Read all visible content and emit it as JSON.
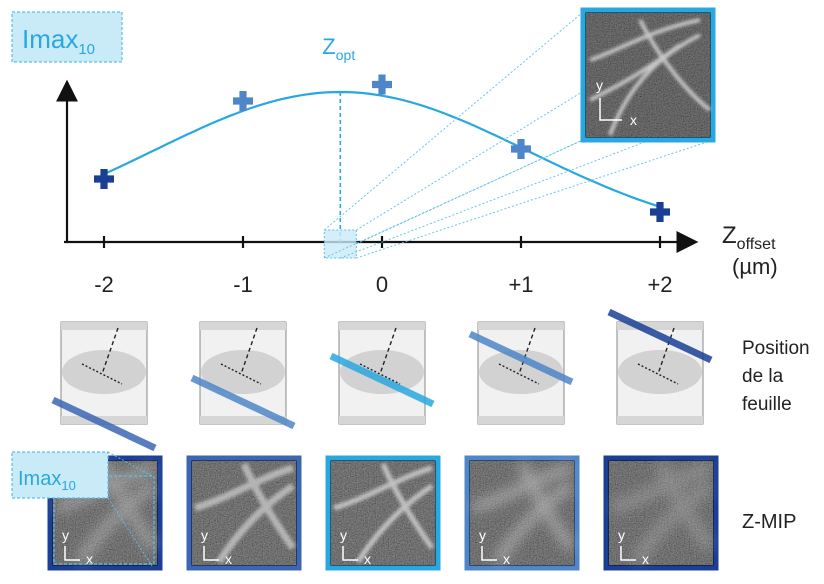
{
  "colors": {
    "curve": "#29a8e0",
    "label_box_fill": "#c9ebf8",
    "label_box_stroke": "#5bbfe9",
    "marker_dark": "#1a3f95",
    "marker_mid": "#3c66b4",
    "marker_light": "#4f86c8",
    "dashed": "#222222"
  },
  "chart_data": {
    "type": "line",
    "ylabel": {
      "base": "Imax",
      "sub": "10"
    },
    "xlabel": {
      "base": "Z",
      "sub": "offset",
      "unit": "(µm)"
    },
    "optimum_label": {
      "base": "Z",
      "sub": "opt"
    },
    "optimum_x": -0.3,
    "xlim": [
      -2.5,
      2.5
    ],
    "ylim": [
      0,
      1.1
    ],
    "x_ticks": [
      -2,
      -1,
      0,
      1,
      2
    ],
    "x_tick_labels": [
      "-2",
      "-1",
      "0",
      "+1",
      "+2"
    ],
    "points": [
      {
        "x": -2,
        "y": 0.42
      },
      {
        "x": -1,
        "y": 0.94
      },
      {
        "x": 0,
        "y": 1.05
      },
      {
        "x": 1,
        "y": 0.62
      },
      {
        "x": 2,
        "y": 0.2
      }
    ],
    "fit_curve": {
      "peak_x": -0.3,
      "peak_y": 1.0,
      "sigma": 1.35
    }
  },
  "inset": {
    "axis_y": "y",
    "axis_x": "x"
  },
  "sheet_row": {
    "label_lines": [
      "Position",
      "de la",
      "feuille"
    ],
    "offsets": [
      -2,
      -1,
      0,
      1,
      2
    ]
  },
  "mip_row": {
    "label": "Z-MIP",
    "imax_label": {
      "base": "Imax",
      "sub": "10"
    },
    "axis_y": "y",
    "axis_x": "x",
    "frame_colors": [
      "#1a3f95",
      "#3c66b4",
      "#29a8e0",
      "#4f86c8",
      "#1a3f95"
    ]
  }
}
